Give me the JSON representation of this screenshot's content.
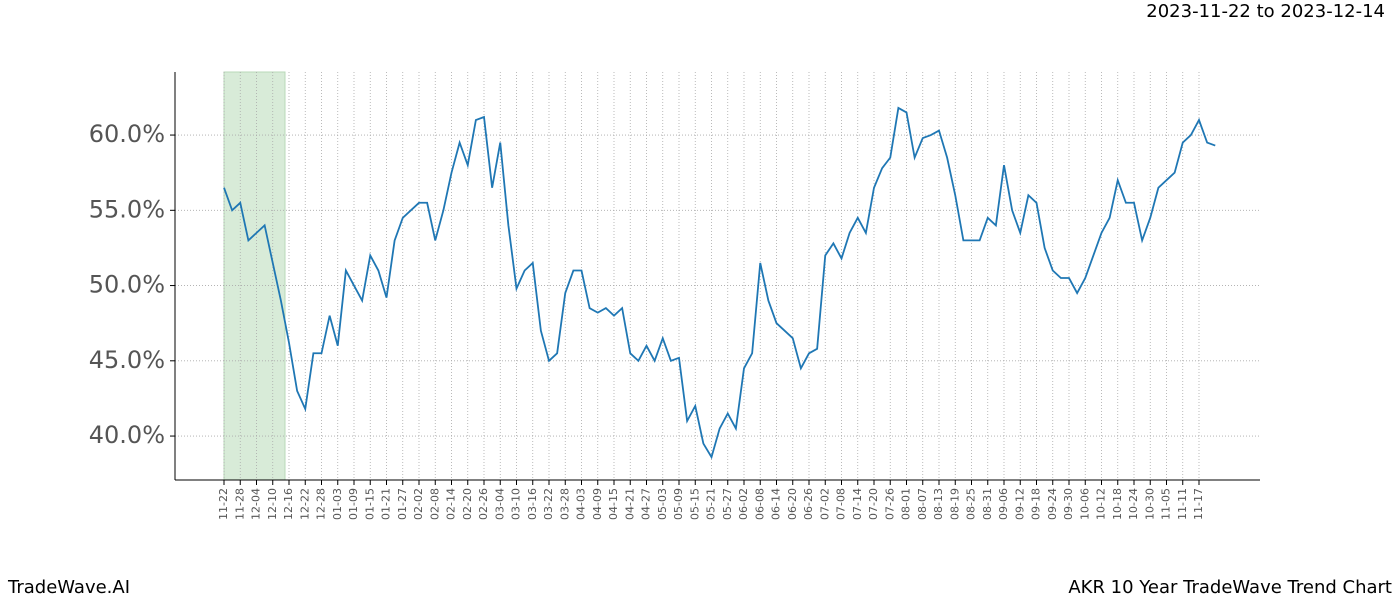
{
  "chart_data": {
    "type": "line",
    "title": "2023-11-22 to 2023-12-14",
    "footer_left": "TradeWave.AI",
    "footer_right": "AKR 10 Year TradeWave Trend Chart",
    "categories": [
      "11-22",
      null,
      "11-28",
      null,
      "12-04",
      null,
      "12-10",
      null,
      "12-16",
      null,
      "12-22",
      null,
      "12-28",
      null,
      "01-03",
      null,
      "01-09",
      null,
      "01-15",
      null,
      "01-21",
      null,
      "01-27",
      null,
      "02-02",
      null,
      "02-08",
      null,
      "02-14",
      null,
      "02-20",
      null,
      "02-26",
      null,
      "03-04",
      null,
      "03-10",
      null,
      "03-16",
      null,
      "03-22",
      null,
      "03-28",
      null,
      "04-03",
      null,
      "04-09",
      null,
      "04-15",
      null,
      "04-21",
      null,
      "04-27",
      null,
      "05-03",
      null,
      "05-09",
      null,
      "05-15",
      null,
      "05-21",
      null,
      "05-27",
      null,
      "06-02",
      null,
      "06-08",
      null,
      "06-14",
      null,
      "06-20",
      null,
      "06-26",
      null,
      "07-02",
      null,
      "07-08",
      null,
      "07-14",
      null,
      "07-20",
      null,
      "07-26",
      null,
      "08-01",
      null,
      "08-07",
      null,
      "08-13",
      null,
      "08-19",
      null,
      "08-25",
      null,
      "08-31",
      null,
      "09-06",
      null,
      "09-12",
      null,
      "09-18",
      null,
      "09-24",
      null,
      "09-30",
      null,
      "10-06",
      null,
      "10-12",
      null,
      "10-18",
      null,
      "10-24",
      null,
      "10-30",
      null,
      "11-05",
      null,
      "11-11",
      null,
      "11-17",
      null,
      null
    ],
    "series": [
      {
        "color": "#1f77b4",
        "values": [
          56.5,
          55.0,
          55.5,
          53.0,
          53.5,
          54.0,
          51.5,
          49.0,
          46.2,
          43.0,
          41.8,
          45.5,
          45.5,
          48.0,
          46.0,
          51.0,
          50.0,
          49.0,
          52.0,
          51.0,
          49.2,
          53.0,
          54.5,
          55.0,
          55.5,
          55.5,
          53.0,
          55.0,
          57.5,
          59.5,
          58.0,
          61.0,
          61.2,
          56.5,
          59.5,
          54.0,
          49.8,
          51.0,
          51.5,
          47.0,
          45.0,
          45.5,
          49.5,
          51.0,
          51.0,
          48.5,
          48.2,
          48.5,
          48.0,
          48.5,
          45.5,
          45.0,
          46.0,
          45.0,
          46.5,
          45.0,
          45.2,
          41.0,
          42.0,
          39.5,
          38.6,
          40.5,
          41.5,
          40.5,
          44.5,
          45.5,
          51.5,
          49.0,
          47.5,
          47.0,
          46.5,
          44.5,
          45.5,
          45.8,
          52.0,
          52.8,
          51.8,
          53.5,
          54.5,
          53.5,
          56.5,
          57.8,
          58.5,
          61.8,
          61.5,
          58.5,
          59.8,
          60.0,
          60.3,
          58.5,
          56.0,
          53.0,
          53.0,
          53.0,
          54.5,
          54.0,
          58.0,
          55.0,
          53.5,
          56.0,
          55.5,
          52.5,
          51.0,
          50.5,
          50.5,
          49.5,
          50.5,
          52.0,
          53.5,
          54.5,
          57.0,
          55.5,
          55.5,
          53.0,
          54.5,
          56.5,
          57.0,
          57.5,
          59.5,
          60.0,
          61.0,
          59.5,
          59.3
        ]
      }
    ],
    "highlight": {
      "from": "11-22",
      "to": "12-16",
      "color": "#d8ebd8"
    },
    "ylim": [
      37.08,
      64.19
    ],
    "yticks": [
      {
        "value": 40,
        "label": "40.0%"
      },
      {
        "value": 45,
        "label": "45.0%"
      },
      {
        "value": 50,
        "label": "50.0%"
      },
      {
        "value": 55,
        "label": "55.0%"
      },
      {
        "value": 60,
        "label": "60.0%"
      }
    ],
    "grid": true
  }
}
